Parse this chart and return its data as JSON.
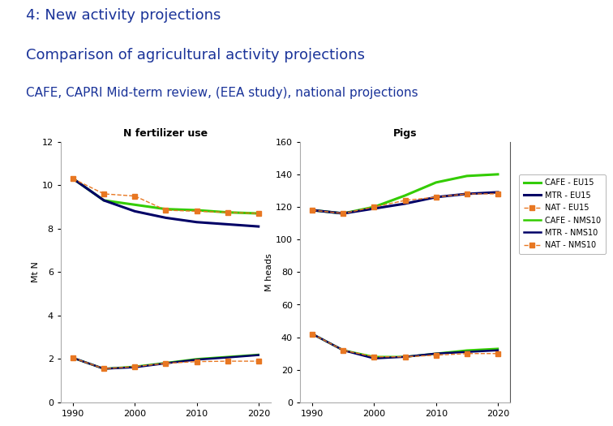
{
  "title_line1": "4: New activity projections",
  "title_line2": "Comparison of agricultural activity projections",
  "title_line3": "CAFE, CAPRI Mid-term review, (EEA study), national projections",
  "title_color": "#1a3399",
  "header_bar_color": "#1a3399",
  "background_color": "#ffffff",
  "years": [
    1990,
    1995,
    2000,
    2005,
    2010,
    2015,
    2020
  ],
  "nfert_title": "N fertilizer use",
  "nfert_ylabel": "Mt N",
  "nfert_ylim": [
    0,
    12
  ],
  "nfert_yticks": [
    0,
    2,
    4,
    6,
    8,
    10,
    12
  ],
  "nfert_cafe_eu15": [
    10.3,
    9.3,
    9.1,
    8.9,
    8.85,
    8.75,
    8.7
  ],
  "nfert_mtr_eu15": [
    10.3,
    9.3,
    8.8,
    8.5,
    8.3,
    8.2,
    8.1
  ],
  "nfert_nat_eu15": [
    10.3,
    9.6,
    9.5,
    8.85,
    8.8,
    8.75,
    8.7
  ],
  "nfert_cafe_nms10": [
    2.05,
    1.55,
    1.65,
    1.82,
    2.0,
    2.1,
    2.2
  ],
  "nfert_mtr_nms10": [
    2.05,
    1.55,
    1.62,
    1.8,
    1.97,
    2.07,
    2.18
  ],
  "nfert_nat_nms10": [
    2.05,
    1.55,
    1.65,
    1.8,
    1.88,
    1.9,
    1.9
  ],
  "pigs_title": "Pigs",
  "pigs_ylabel": "M heads",
  "pigs_ylim": [
    0,
    160
  ],
  "pigs_yticks": [
    0,
    20,
    40,
    60,
    80,
    100,
    120,
    140,
    160
  ],
  "pigs_cafe_eu15": [
    118,
    116,
    120,
    127,
    135,
    139,
    140
  ],
  "pigs_mtr_eu15": [
    118,
    116,
    119,
    122,
    126,
    128,
    129
  ],
  "pigs_nat_eu15": [
    118,
    116,
    120,
    124,
    126,
    128,
    128
  ],
  "pigs_cafe_nms10": [
    42,
    32,
    28,
    28,
    30,
    32,
    33
  ],
  "pigs_mtr_nms10": [
    42,
    32,
    27,
    28,
    30,
    31,
    32
  ],
  "pigs_nat_nms10": [
    42,
    32,
    28,
    28,
    29,
    30,
    30
  ],
  "color_cafe": "#33cc00",
  "color_mtr": "#000066",
  "color_nat": "#e87722",
  "legend_labels": [
    "CAFE - EU15",
    "MTR - EU15",
    "NAT - EU15",
    "CAFE - NMS10",
    "MTR - NMS10",
    "NAT - NMS10"
  ],
  "xlim": [
    1988,
    2022
  ],
  "xticks": [
    1990,
    2000,
    2010,
    2020
  ]
}
